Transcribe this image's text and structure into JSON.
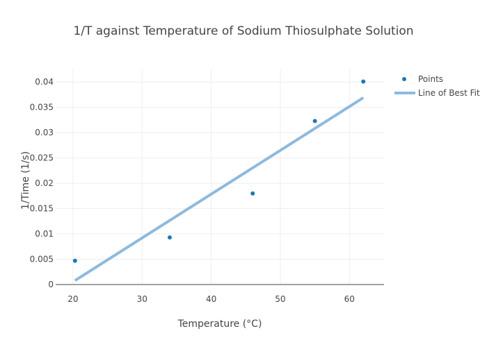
{
  "chart_data": {
    "type": "scatter",
    "title": "1/T against Temperature of Sodium Thiosulphate Solution",
    "xlabel": "Temperature (°C)",
    "ylabel": "1/Time (1/s)",
    "xlim": [
      17.5,
      65
    ],
    "ylim": [
      0,
      0.0425
    ],
    "x_ticks": [
      20,
      30,
      40,
      50,
      60
    ],
    "y_ticks": [
      0,
      0.005,
      0.01,
      0.015,
      0.02,
      0.025,
      0.03,
      0.035,
      0.04
    ],
    "x_tick_labels": [
      "20",
      "30",
      "40",
      "50",
      "60"
    ],
    "y_tick_labels": [
      "0",
      "0.005",
      "0.01",
      "0.015",
      "0.02",
      "0.025",
      "0.03",
      "0.035",
      "0.04"
    ],
    "grid": true,
    "legend_position": "top-right",
    "series": [
      {
        "name": "Points",
        "mode": "markers",
        "color": "#1f77b4",
        "x": [
          20.3,
          34,
          46,
          55,
          62
        ],
        "y": [
          0.0047,
          0.0093,
          0.018,
          0.0323,
          0.0401
        ]
      },
      {
        "name": "Line of Best Fit",
        "mode": "lines",
        "color": "#8fb9dd",
        "x": [
          20.3,
          62
        ],
        "y": [
          0.0008,
          0.0369
        ]
      }
    ]
  }
}
